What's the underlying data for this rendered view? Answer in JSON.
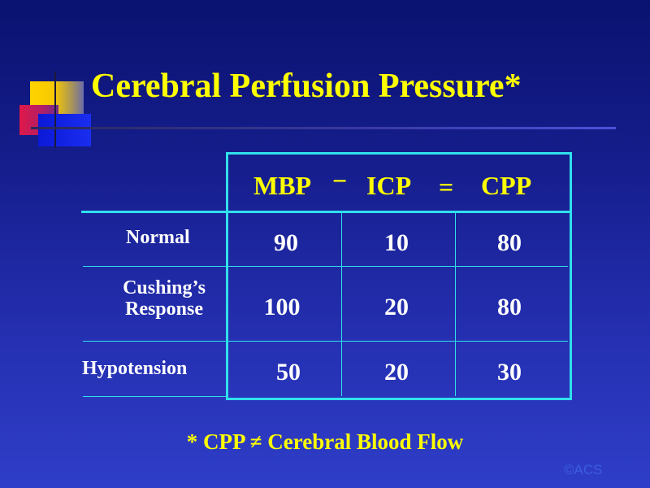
{
  "title": "Cerebral Perfusion Pressure*",
  "header": {
    "col1": "MBP",
    "minus": "−",
    "col2": "ICP",
    "equals": "=",
    "col3": "CPP"
  },
  "rows": [
    {
      "label": "Normal",
      "mbp": "90",
      "icp": "10",
      "cpp": "80"
    },
    {
      "label_line1": "Cushing’s",
      "label_line2": "Response",
      "mbp": "100",
      "icp": "20",
      "cpp": "80"
    },
    {
      "label": "Hypotension",
      "mbp": "50",
      "icp": "20",
      "cpp": "30"
    }
  ],
  "footnote": "* CPP ≠ Cerebral Blood Flow",
  "copyright": "©ACS",
  "colors": {
    "title": "#ffff00",
    "grid": "#30e0ec",
    "background": "#1a238f"
  }
}
